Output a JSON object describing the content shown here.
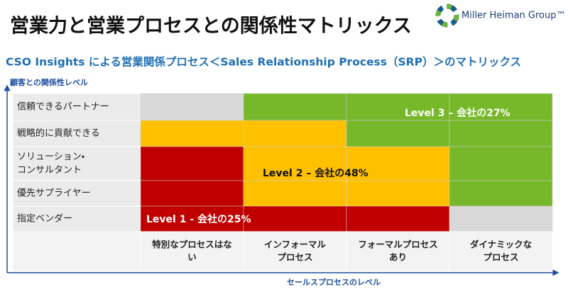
{
  "header": {
    "title": "営業力と営業プロセスとの関係性マトリックス",
    "logo": "Miller Heiman Group™",
    "subtitle": "CSO Insights による営業関係プロセス＜Sales Relationship Process（SRP）＞のマトリックス"
  },
  "y_axis_label": "顧客との関係性レベル",
  "x_axis_label": "セールスプロセスのレベル",
  "rows": [
    {
      "label": [
        "信頼できるパートナー"
      ],
      "cells": [
        "#d9d9d9",
        "#77b82a",
        "#77b82a",
        "#77b82a"
      ]
    },
    {
      "label": [
        "戦略的に貢献できる"
      ],
      "cells": [
        "#ffc000",
        "#ffc000",
        "#77b82a",
        "#77b82a"
      ]
    },
    {
      "label": [
        "ソリューション・",
        "コンサルタント"
      ],
      "cells": [
        "#c00000",
        "#ffc000",
        "#ffc000",
        "#77b82a"
      ]
    },
    {
      "label": [
        "優先サプライヤー"
      ],
      "cells": [
        "#c00000",
        "#ffc000",
        "#ffc000",
        "#77b82a"
      ]
    },
    {
      "label": [
        "指定ベンダー"
      ],
      "cells": [
        "#c00000",
        "#c00000",
        "#c00000",
        "#d9d9d9"
      ]
    }
  ],
  "columns": [
    [
      "特別なプロセスはな",
      "い"
    ],
    [
      "インフォーマル",
      "プロセス"
    ],
    [
      "フォーマルプロセス",
      "あり"
    ],
    [
      "ダイナミックな",
      "プロセス"
    ]
  ],
  "levels": [
    "Level 3 – 会社の27%",
    "Level 2 – 会社の48%",
    "Level 1 -  会社の25%"
  ]
}
